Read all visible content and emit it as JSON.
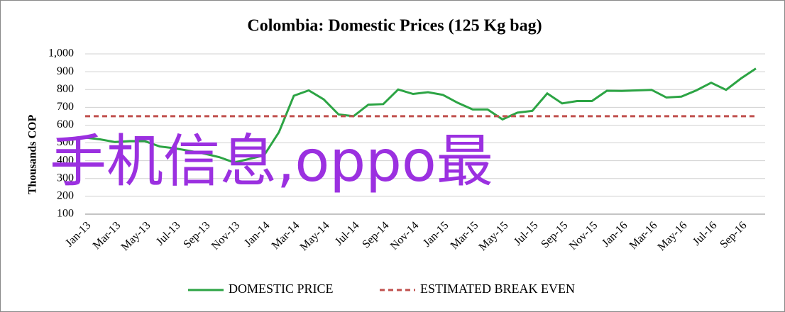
{
  "chart_data": {
    "type": "line",
    "title": "Colombia:  Domestic Prices (125 Kg bag)",
    "y_label": "Thousands COP",
    "overlay": "手机信息,oppo最",
    "categories": [
      "Jan-13",
      null,
      "Mar-13",
      null,
      "May-13",
      null,
      "Jul-13",
      null,
      "Sep-13",
      null,
      "Nov-13",
      null,
      "Jan-14",
      null,
      "Mar-14",
      null,
      "May-14",
      null,
      "Jul-14",
      null,
      "Sep-14",
      null,
      "Nov-14",
      null,
      "Jan-15",
      null,
      "Mar-15",
      null,
      "May-15",
      null,
      "Jul-15",
      null,
      "Sep-15",
      null,
      "Nov-15",
      null,
      "Jan-16",
      null,
      "Mar-16",
      null,
      "May-16",
      null,
      "Jul-16",
      null,
      "Sep-16",
      null
    ],
    "series": [
      {
        "name": "DOMESTIC PRICE",
        "color": "#2ca444",
        "dash": false,
        "values": [
          530,
          520,
          505,
          510,
          510,
          480,
          470,
          455,
          440,
          420,
          390,
          410,
          430,
          560,
          765,
          795,
          745,
          660,
          650,
          715,
          718,
          800,
          775,
          785,
          770,
          725,
          688,
          688,
          632,
          670,
          680,
          778,
          722,
          735,
          735,
          793,
          792,
          795,
          798,
          755,
          760,
          795,
          838,
          798,
          862,
          918
        ]
      },
      {
        "name": "ESTIMATED BREAK EVEN",
        "color": "#c0504d",
        "dash": true,
        "values": [
          650,
          650,
          650,
          650,
          650,
          650,
          650,
          650,
          650,
          650,
          650,
          650,
          650,
          650,
          650,
          650,
          650,
          650,
          650,
          650,
          650,
          650,
          650,
          650,
          650,
          650,
          650,
          650,
          650,
          650,
          650,
          650,
          650,
          650,
          650,
          650,
          650,
          650,
          650,
          650,
          650,
          650,
          650,
          650,
          650,
          650
        ]
      }
    ],
    "ylim": [
      100,
      1000
    ],
    "yticks": [
      100,
      200,
      300,
      400,
      500,
      600,
      700,
      800,
      900,
      {
        "value": 1000,
        "label": "1,000"
      }
    ],
    "grid": true,
    "legend": "bottom"
  }
}
